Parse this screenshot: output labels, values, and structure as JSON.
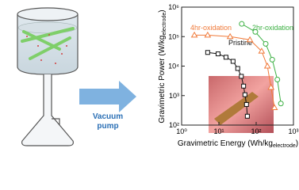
{
  "arrow_label": [
    "Vacuum",
    "pump"
  ],
  "chart_data": {
    "type": "line",
    "log_x": true,
    "log_y": true,
    "xlabel": [
      "Gravimetric Energy (Wh/kg",
      "electrode",
      ")"
    ],
    "ylabel": [
      "Gravimetric Power (W/kg",
      "electrode",
      ")"
    ],
    "xlim": [
      1,
      1000
    ],
    "ylim": [
      100,
      1000000
    ],
    "xticks": [
      {
        "value": 1,
        "label": "10⁰"
      },
      {
        "value": 10,
        "label": "10¹"
      },
      {
        "value": 100,
        "label": "10²"
      },
      {
        "value": 1000,
        "label": "10³"
      }
    ],
    "yticks": [
      {
        "value": 100,
        "label": "10²"
      },
      {
        "value": 1000,
        "label": "10³"
      },
      {
        "value": 10000,
        "label": "10⁴"
      },
      {
        "value": 100000,
        "label": "10⁵"
      },
      {
        "value": 1000000,
        "label": "10⁶"
      }
    ],
    "series": [
      {
        "name": "Pristine",
        "color": "#111111",
        "marker": "square",
        "x": [
          5,
          9.5,
          15.5,
          24,
          32,
          40,
          46,
          50,
          55,
          58
        ],
        "values": [
          29000,
          26000,
          20000,
          14500,
          8300,
          4500,
          2100,
          1070,
          500,
          200
        ]
      },
      {
        "name": "4hr-oxidation",
        "color": "#f07a3a",
        "marker": "triangle",
        "x": [
          2.2,
          5,
          20,
          68,
          140,
          200,
          250,
          310
        ],
        "values": [
          112000,
          112000,
          100000,
          78000,
          32000,
          10000,
          1900,
          390
        ]
      },
      {
        "name": "2hr-oxidation",
        "color": "#3cb043",
        "marker": "circle",
        "x": [
          41,
          95,
          180,
          270,
          370,
          460
        ],
        "values": [
          270000,
          145000,
          57000,
          16500,
          3500,
          540
        ]
      }
    ]
  }
}
